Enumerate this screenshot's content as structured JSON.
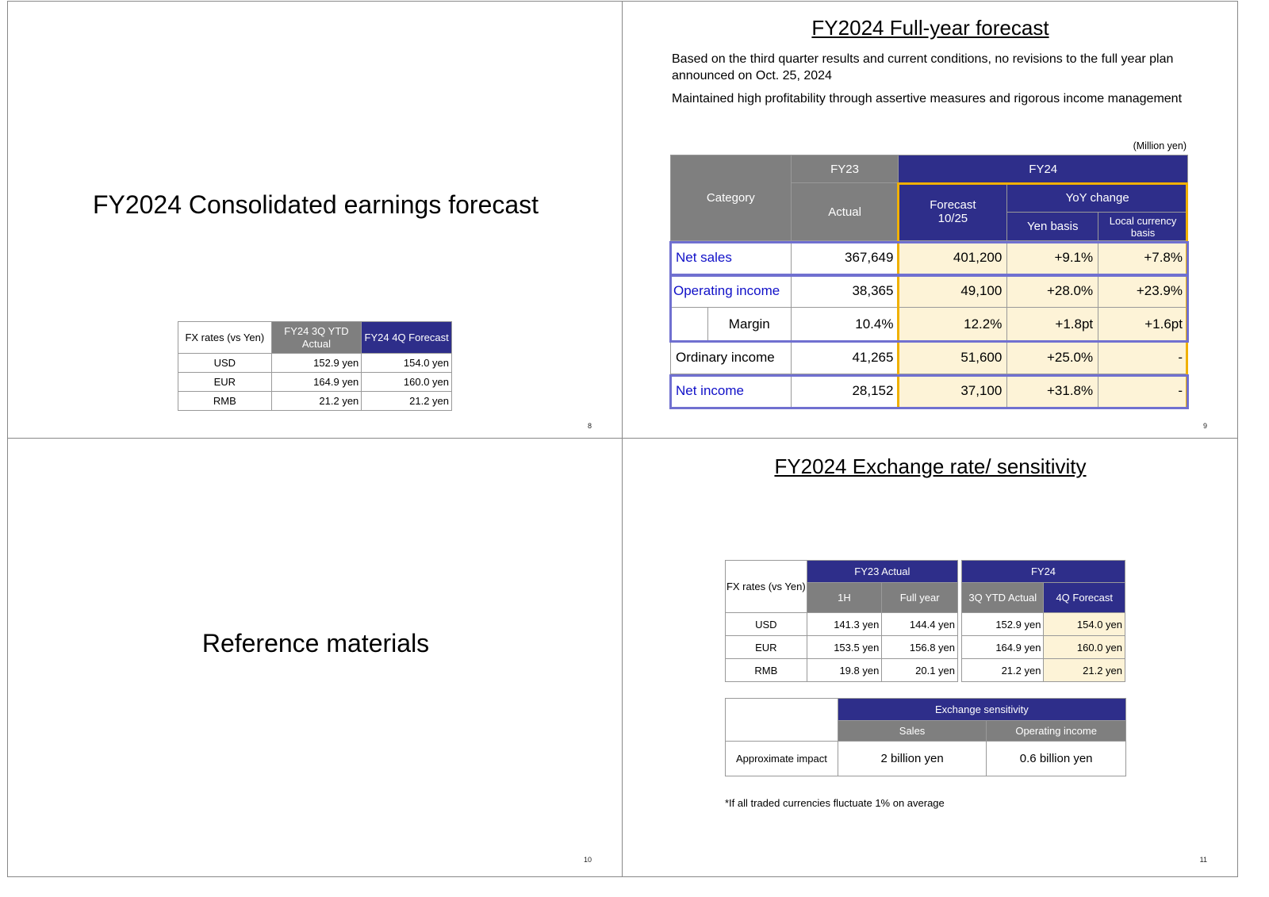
{
  "slide8": {
    "title": "FY2024 Consolidated earnings forecast",
    "fx_table": {
      "headers": [
        "FX rates (vs Yen)",
        "FY24 3Q YTD Actual",
        "FY24 4Q Forecast"
      ],
      "rows": [
        [
          "USD",
          "152.9 yen",
          "154.0 yen"
        ],
        [
          "EUR",
          "164.9 yen",
          "160.0 yen"
        ],
        [
          "RMB",
          "21.2 yen",
          "21.2 yen"
        ]
      ]
    },
    "page_number": "8"
  },
  "slide9": {
    "title": "FY2024 Full-year forecast",
    "para1": "Based on the third quarter results and current conditions, no revisions to the full year plan announced on Oct. 25, 2024",
    "para2": "Maintained high profitability through assertive measures and rigorous income management",
    "unit": "(Million yen)",
    "headers": {
      "category": "Category",
      "fy23": "FY23",
      "fy24": "FY24",
      "actual": "Actual",
      "forecast": "Forecast 10/25",
      "yoy": "YoY change",
      "yen_basis": "Yen basis",
      "local_basis": "Local currency basis"
    },
    "rows": [
      {
        "label": "Net sales",
        "actual": "367,649",
        "forecast": "401,200",
        "yen": "+9.1%",
        "local": "+7.8%"
      },
      {
        "label": "Operating income",
        "actual": "38,365",
        "forecast": "49,100",
        "yen": "+28.0%",
        "local": "+23.9%"
      },
      {
        "label": "Margin",
        "actual": "10.4%",
        "forecast": "12.2%",
        "yen": "+1.8pt",
        "local": "+1.6pt"
      },
      {
        "label": "Ordinary income",
        "actual": "41,265",
        "forecast": "51,600",
        "yen": "+25.0%",
        "local": "-"
      },
      {
        "label": "Net income",
        "actual": "28,152",
        "forecast": "37,100",
        "yen": "+31.8%",
        "local": "-"
      }
    ],
    "page_number": "9",
    "colors": {
      "highlight_border": "#f0b000",
      "row_border": "#7070d0",
      "cream": "#fdf3d7",
      "navy": "#2e2e8a"
    }
  },
  "slide10": {
    "title": "Reference materials",
    "page_number": "10"
  },
  "slide11": {
    "title": "FY2024 Exchange rate/ sensitivity",
    "fx_table": {
      "corner": "FX rates (vs Yen)",
      "fy23_actual": "FY23 Actual",
      "fy24": "FY24",
      "h1": "1H",
      "full_year": "Full year",
      "ytd_actual": "3Q YTD Actual",
      "q4_forecast": "4Q Forecast",
      "rows": [
        [
          "USD",
          "141.3 yen",
          "144.4 yen",
          "152.9 yen",
          "154.0 yen"
        ],
        [
          "EUR",
          "153.5 yen",
          "156.8 yen",
          "164.9 yen",
          "160.0 yen"
        ],
        [
          "RMB",
          "19.8 yen",
          "20.1 yen",
          "21.2 yen",
          "21.2 yen"
        ]
      ]
    },
    "sensitivity": {
      "header": "Exchange sensitivity",
      "sales": "Sales",
      "operating_income": "Operating income",
      "row_label": "Approximate impact",
      "sales_value": "2 billion yen",
      "oi_value": "0.6 billion yen"
    },
    "footnote": "*If all traded currencies fluctuate 1% on average",
    "page_number": "11"
  }
}
